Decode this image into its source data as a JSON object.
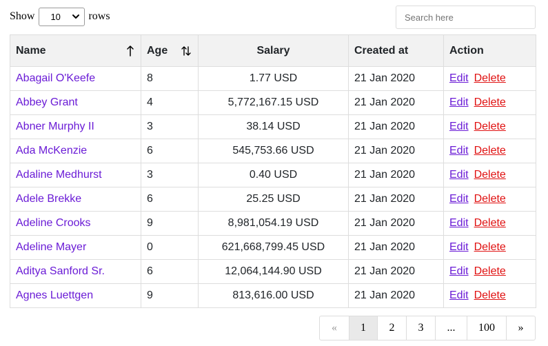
{
  "controls": {
    "show_label": "Show",
    "rows_label": "rows",
    "rows_per_page": "10",
    "search_placeholder": "Search here"
  },
  "table": {
    "columns": [
      "Name",
      "Age",
      "Salary",
      "Created at",
      "Action"
    ],
    "sorted_column": "Name",
    "sort_direction": "ascending",
    "action_labels": {
      "edit": "Edit",
      "delete": "Delete"
    },
    "rows": [
      {
        "name": "Abagail O'Keefe",
        "age": "8",
        "salary": "1.77 USD",
        "created": "21 Jan 2020"
      },
      {
        "name": "Abbey Grant",
        "age": "4",
        "salary": "5,772,167.15 USD",
        "created": "21 Jan 2020"
      },
      {
        "name": "Abner Murphy II",
        "age": "3",
        "salary": "38.14 USD",
        "created": "21 Jan 2020"
      },
      {
        "name": "Ada McKenzie",
        "age": "6",
        "salary": "545,753.66 USD",
        "created": "21 Jan 2020"
      },
      {
        "name": "Adaline Medhurst",
        "age": "3",
        "salary": "0.40 USD",
        "created": "21 Jan 2020"
      },
      {
        "name": "Adele Brekke",
        "age": "6",
        "salary": "25.25 USD",
        "created": "21 Jan 2020"
      },
      {
        "name": "Adeline Crooks",
        "age": "9",
        "salary": "8,981,054.19 USD",
        "created": "21 Jan 2020"
      },
      {
        "name": "Adeline Mayer",
        "age": "0",
        "salary": "621,668,799.45 USD",
        "created": "21 Jan 2020"
      },
      {
        "name": "Aditya Sanford Sr.",
        "age": "6",
        "salary": "12,064,144.90 USD",
        "created": "21 Jan 2020"
      },
      {
        "name": "Agnes Luettgen",
        "age": "9",
        "salary": "813,616.00 USD",
        "created": "21 Jan 2020"
      }
    ]
  },
  "pagination": {
    "prev": "«",
    "pages": [
      "1",
      "2",
      "3",
      "...",
      "100"
    ],
    "next": "»",
    "current": "1"
  },
  "colors": {
    "link": "#6a1bd6",
    "delete": "#e01010",
    "header_bg": "#f2f2f2",
    "active_page_bg": "#e9e9e9"
  }
}
